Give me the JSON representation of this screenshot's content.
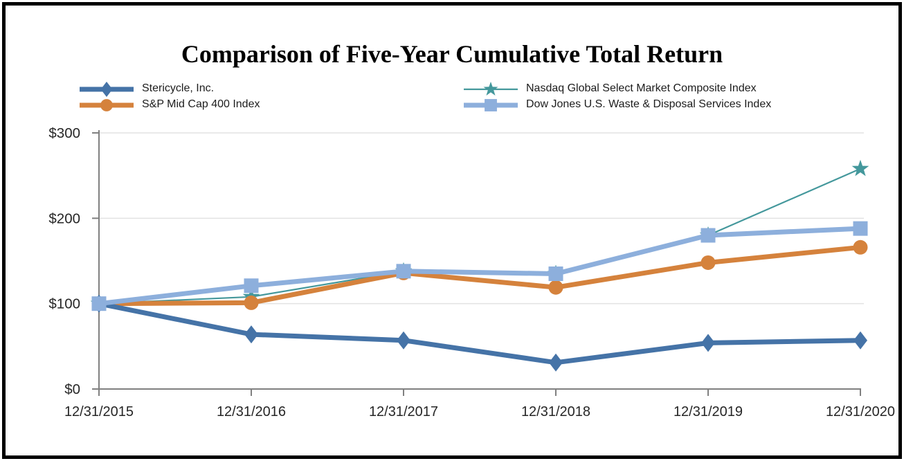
{
  "chart_data": {
    "type": "line",
    "title": "Comparison of Five-Year Cumulative Total Return",
    "categories": [
      "12/31/2015",
      "12/31/2016",
      "12/31/2017",
      "12/31/2018",
      "12/31/2019",
      "12/31/2020"
    ],
    "y_ticks": [
      {
        "label": "$0",
        "value": 0
      },
      {
        "label": "$100",
        "value": 100
      },
      {
        "label": "$200",
        "value": 200
      },
      {
        "label": "$300",
        "value": 300
      }
    ],
    "ylim": [
      0,
      300
    ],
    "grid": "horizontal",
    "legend_position": "top",
    "series": [
      {
        "id": "stericycle",
        "name": "Stericycle, Inc.",
        "marker": "diamond",
        "color": "#4573A7",
        "line_width": 7,
        "values": [
          100,
          64,
          57,
          31,
          54,
          57
        ]
      },
      {
        "id": "sp400",
        "name": "S&P Mid Cap 400 Index",
        "marker": "circle",
        "color": "#D5823C",
        "line_width": 7,
        "values": [
          100,
          101,
          136,
          119,
          148,
          166
        ]
      },
      {
        "id": "nasdaq",
        "name": "Nasdaq Global Select Market Composite Index",
        "marker": "star",
        "color": "#44989C",
        "line_width": 2.2,
        "values": [
          100,
          108,
          138,
          135,
          180,
          258
        ]
      },
      {
        "id": "dow",
        "name": "Dow Jones U.S. Waste & Disposal Services Index",
        "marker": "square",
        "color": "#8DAFDC",
        "line_width": 7,
        "values": [
          100,
          121,
          138,
          135,
          180,
          188
        ]
      }
    ],
    "draw_order": [
      2,
      1,
      0,
      3
    ],
    "colors": {
      "axis": "#808080",
      "gridline": "#E2E2E2",
      "tick_label": "#262626",
      "title": "#000000"
    }
  }
}
